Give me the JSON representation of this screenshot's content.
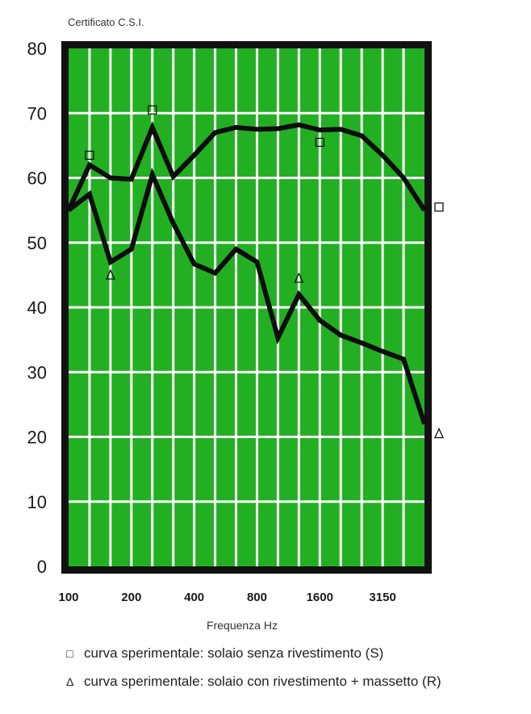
{
  "certificate": "Certificato C.S.I.",
  "chart_data": {
    "type": "line",
    "title": "",
    "xlabel": "Frequenza Hz",
    "ylabel": "",
    "ylim": [
      0,
      80
    ],
    "yticks": [
      0,
      10,
      20,
      30,
      40,
      50,
      60,
      70,
      80
    ],
    "x": [
      100,
      125,
      160,
      200,
      250,
      315,
      400,
      500,
      630,
      800,
      1000,
      1250,
      1600,
      2000,
      2500,
      3150,
      4000,
      5000
    ],
    "xtick_labels": [
      "100",
      "200",
      "400",
      "800",
      "1600",
      "3150"
    ],
    "xtick_values": [
      100,
      200,
      400,
      800,
      1600,
      3150
    ],
    "grid": true,
    "background_color": "#22b022",
    "series": [
      {
        "name": "curva sperimentale: solaio senza rivestimento (S)",
        "marker": "□",
        "values": [
          55,
          62,
          60,
          59.8,
          67.8,
          60.2,
          63.5,
          67,
          67.8,
          67.5,
          67.6,
          68.2,
          67.4,
          67.5,
          66.5,
          63.5,
          60,
          55
        ],
        "marker_points": [
          {
            "x": 125,
            "y": 63.5
          },
          {
            "x": 250,
            "y": 70.5
          },
          {
            "x": 1600,
            "y": 65.5
          },
          {
            "x": 5000,
            "y": 55.5
          }
        ]
      },
      {
        "name": "curva sperimentale: solaio con rivestimento + massetto (R)",
        "marker": "Δ",
        "values": [
          55,
          57.5,
          47,
          49,
          60.5,
          53,
          46.7,
          45.3,
          49,
          47,
          35.3,
          42,
          38,
          35.7,
          34.5,
          33.2,
          32,
          22
        ],
        "marker_points": [
          {
            "x": 160,
            "y": 45
          },
          {
            "x": 1250,
            "y": 44.5
          },
          {
            "x": 5000,
            "y": 20.5
          }
        ]
      }
    ]
  },
  "legend": {
    "s_symbol": "□",
    "s_text": "curva sperimentale: solaio senza rivestimento (S)",
    "r_symbol": "Δ",
    "r_text": "curva sperimentale: solaio con rivestimento + massetto (R)"
  }
}
